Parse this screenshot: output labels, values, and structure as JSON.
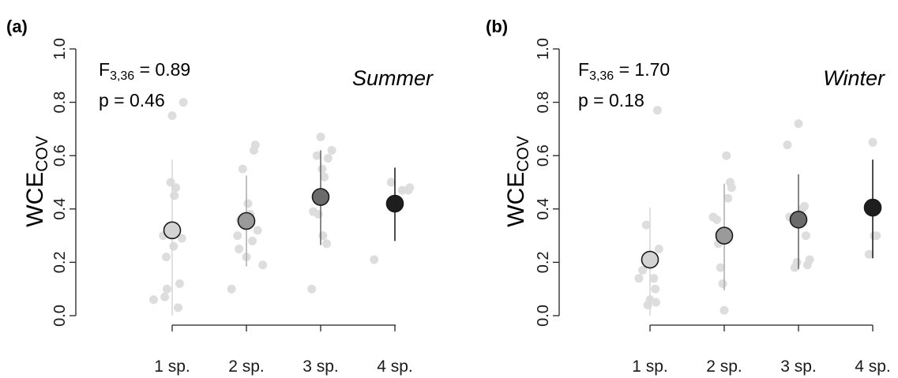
{
  "chart_data": [
    {
      "type": "scatter",
      "panel_label": "(a)",
      "season": "Summer",
      "stat": {
        "f_symbol": "F",
        "f_df": "3,36",
        "f_value": " = 0.89",
        "p_text": "p = 0.46"
      },
      "ylabel": "WCE",
      "ylabel_sub": "COV",
      "ylim": [
        0,
        1
      ],
      "yticks": [
        "0.0",
        "0.2",
        "0.4",
        "0.6",
        "0.8",
        "1.0"
      ],
      "categories": [
        "1 sp.",
        "2 sp.",
        "3 sp.",
        "4 sp."
      ],
      "means": [
        0.32,
        0.355,
        0.445,
        0.42
      ],
      "error_low": [
        0.0,
        0.185,
        0.265,
        0.28
      ],
      "error_high": [
        0.585,
        0.525,
        0.62,
        0.555
      ],
      "mean_colors": [
        "#d3d3d3",
        "#9a9a9a",
        "#6b6b6b",
        "#1e1e1e"
      ],
      "error_colors": [
        "#d8d8d8",
        "#b0b0b0",
        "#6a6a6a",
        "#222222"
      ],
      "raw_points": [
        [
          [
            -0.25,
            0.06
          ],
          [
            -0.1,
            0.07
          ],
          [
            -0.07,
            0.1
          ],
          [
            -0.03,
            0.33
          ],
          [
            -0.02,
            0.5
          ],
          [
            0.0,
            0.75
          ],
          [
            0.02,
            0.26
          ],
          [
            0.03,
            0.45
          ],
          [
            0.05,
            0.48
          ],
          [
            0.08,
            0.03
          ],
          [
            0.1,
            0.12
          ],
          [
            0.13,
            0.29
          ],
          [
            0.15,
            0.8
          ],
          [
            -0.12,
            0.3
          ],
          [
            -0.08,
            0.22
          ]
        ],
        [
          [
            -0.2,
            0.1
          ],
          [
            -0.12,
            0.3
          ],
          [
            -0.1,
            0.25
          ],
          [
            -0.05,
            0.55
          ],
          [
            0.0,
            0.22
          ],
          [
            0.02,
            0.42
          ],
          [
            0.05,
            0.38
          ],
          [
            0.08,
            0.28
          ],
          [
            0.1,
            0.62
          ],
          [
            0.12,
            0.64
          ],
          [
            0.15,
            0.32
          ],
          [
            0.22,
            0.19
          ],
          [
            -0.08,
            0.36
          ]
        ],
        [
          [
            -0.12,
            0.1
          ],
          [
            -0.1,
            0.39
          ],
          [
            -0.05,
            0.6
          ],
          [
            0.0,
            0.67
          ],
          [
            0.02,
            0.55
          ],
          [
            0.03,
            0.3
          ],
          [
            0.05,
            0.52
          ],
          [
            0.08,
            0.27
          ],
          [
            0.1,
            0.59
          ],
          [
            0.15,
            0.62
          ],
          [
            -0.03,
            0.38
          ]
        ],
        [
          [
            -0.28,
            0.21
          ],
          [
            0.1,
            0.47
          ],
          [
            0.18,
            0.47
          ],
          [
            0.2,
            0.48
          ],
          [
            -0.05,
            0.5
          ]
        ]
      ]
    },
    {
      "type": "scatter",
      "panel_label": "(b)",
      "season": "Winter",
      "stat": {
        "f_symbol": "F",
        "f_df": "3,36",
        "f_value": " = 1.70",
        "p_text": "p = 0.18"
      },
      "ylabel": "WCE",
      "ylabel_sub": "COV",
      "ylim": [
        0,
        1
      ],
      "yticks": [
        "0.0",
        "0.2",
        "0.4",
        "0.6",
        "0.8",
        "1.0"
      ],
      "categories": [
        "1 sp.",
        "2 sp.",
        "3 sp.",
        "4 sp."
      ],
      "means": [
        0.21,
        0.3,
        0.36,
        0.405
      ],
      "error_low": [
        0.0,
        0.095,
        0.175,
        0.215
      ],
      "error_high": [
        0.405,
        0.495,
        0.53,
        0.585
      ],
      "mean_colors": [
        "#d3d3d3",
        "#9a9a9a",
        "#6b6b6b",
        "#1e1e1e"
      ],
      "error_colors": [
        "#d8d8d8",
        "#b0b0b0",
        "#6a6a6a",
        "#222222"
      ],
      "raw_points": [
        [
          [
            -0.15,
            0.14
          ],
          [
            -0.1,
            0.17
          ],
          [
            -0.05,
            0.34
          ],
          [
            -0.03,
            0.04
          ],
          [
            0.0,
            0.06
          ],
          [
            0.02,
            0.22
          ],
          [
            0.05,
            0.14
          ],
          [
            0.07,
            0.1
          ],
          [
            0.1,
            0.77
          ],
          [
            0.12,
            0.25
          ],
          [
            0.08,
            0.05
          ]
        ],
        [
          [
            -0.15,
            0.37
          ],
          [
            -0.1,
            0.36
          ],
          [
            -0.05,
            0.18
          ],
          [
            0.0,
            0.02
          ],
          [
            0.03,
            0.6
          ],
          [
            0.05,
            0.44
          ],
          [
            0.08,
            0.5
          ],
          [
            0.1,
            0.48
          ],
          [
            -0.08,
            0.27
          ],
          [
            -0.02,
            0.12
          ]
        ],
        [
          [
            -0.15,
            0.64
          ],
          [
            -0.12,
            0.37
          ],
          [
            -0.05,
            0.18
          ],
          [
            0.0,
            0.72
          ],
          [
            0.05,
            0.4
          ],
          [
            0.08,
            0.41
          ],
          [
            0.1,
            0.3
          ],
          [
            0.12,
            0.19
          ],
          [
            0.15,
            0.21
          ],
          [
            -0.02,
            0.2
          ]
        ],
        [
          [
            -0.05,
            0.23
          ],
          [
            0.0,
            0.65
          ],
          [
            0.02,
            0.3
          ],
          [
            0.05,
            0.3
          ]
        ]
      ]
    }
  ]
}
